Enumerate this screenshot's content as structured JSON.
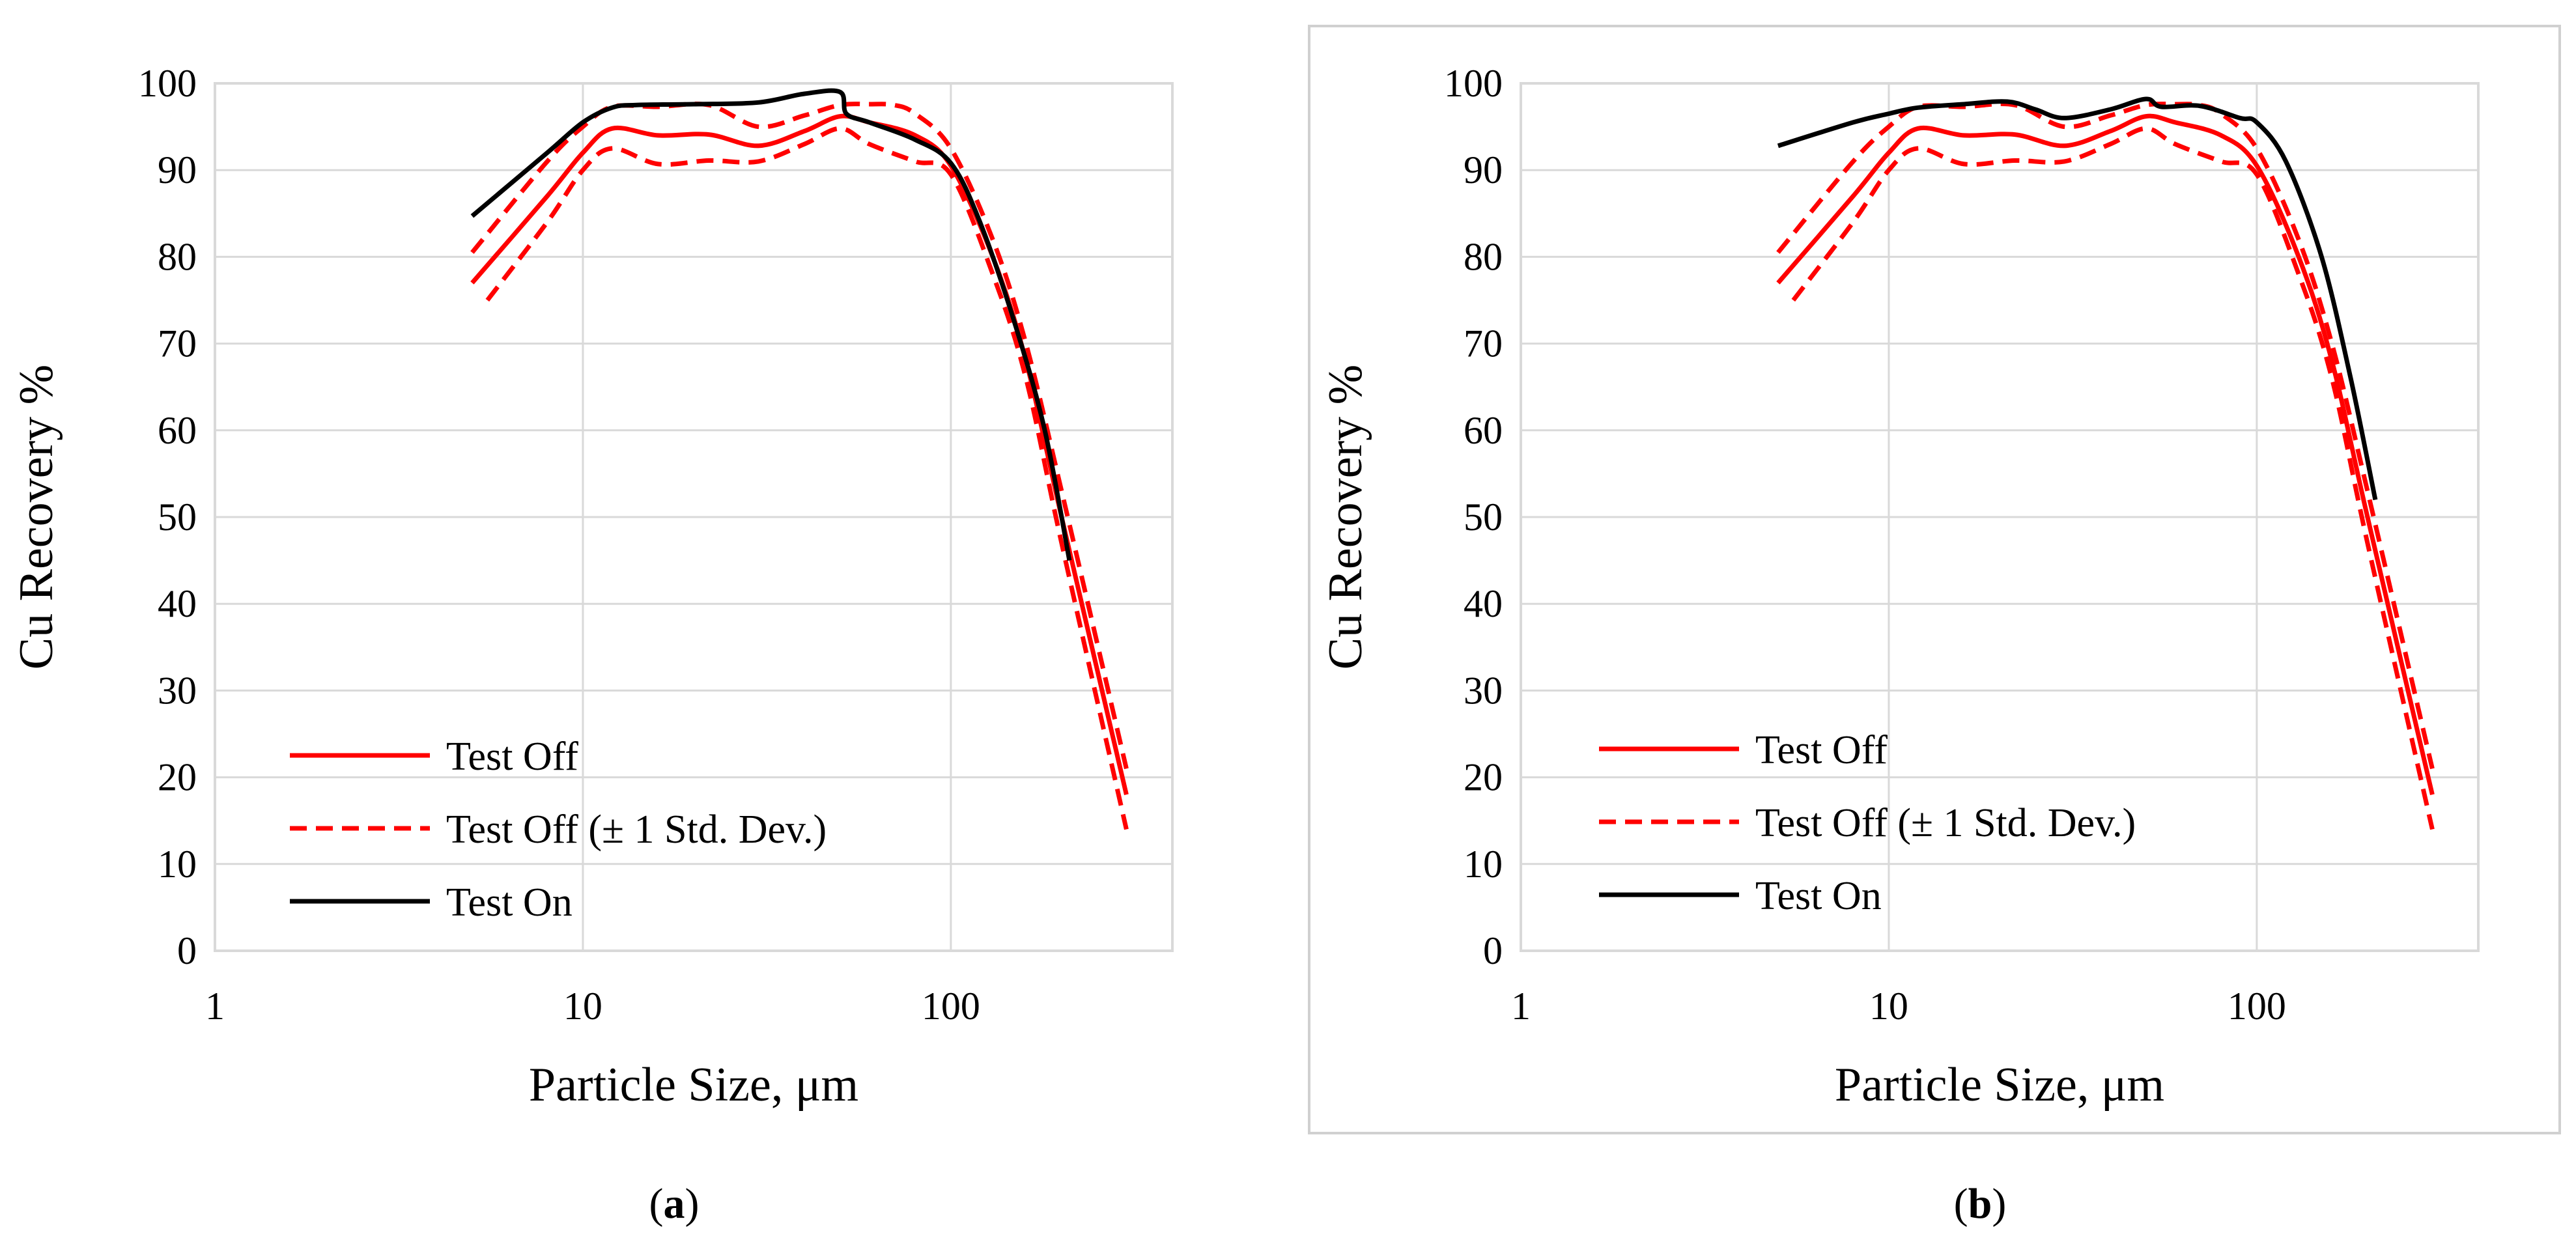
{
  "chart_data": [
    {
      "panel_label": "a",
      "type": "line",
      "xlabel": "Particle Size, μm",
      "ylabel": "Cu Recovery %",
      "x_scale": "log",
      "xlim": [
        1,
        400
      ],
      "ylim": [
        0,
        100
      ],
      "x_ticks": [
        1,
        10,
        100
      ],
      "y_ticks": [
        0,
        10,
        20,
        30,
        40,
        50,
        60,
        70,
        80,
        90,
        100
      ],
      "grid": true,
      "legend_position": "bottom-left",
      "legend": [
        "Test Off",
        "Test Off (± 1 Std. Dev.)",
        "Test On"
      ],
      "series": [
        {
          "name": "Test Off",
          "color": "#ff0000",
          "style": "solid",
          "legend_index": 0,
          "x": [
            5,
            8,
            10,
            12,
            16,
            22,
            30,
            40,
            50,
            60,
            80,
            100,
            130,
            160,
            200,
            300
          ],
          "y": [
            77,
            87,
            92,
            94.8,
            94,
            94.1,
            92.8,
            94.5,
            96.2,
            95.5,
            94,
            90.5,
            80,
            68,
            50,
            18
          ]
        },
        {
          "name": "Test Off +1 Std. Dev.",
          "color": "#ff0000",
          "style": "dashed",
          "legend_index": 1,
          "x": [
            5,
            8,
            10,
            12,
            16,
            22,
            30,
            40,
            50,
            60,
            70,
            80,
            100,
            130,
            160,
            200,
            300
          ],
          "y": [
            80.5,
            91,
            95,
            97.3,
            97.3,
            97.5,
            95,
            96.3,
            97.5,
            97.6,
            97.5,
            96.5,
            92.5,
            82,
            70,
            53,
            21
          ]
        },
        {
          "name": "Test Off -1 Std. Dev.",
          "color": "#ff0000",
          "style": "dashed",
          "legend_index": 1,
          "x": [
            5.5,
            8,
            10,
            12,
            16,
            22,
            30,
            40,
            50,
            60,
            80,
            100,
            130,
            160,
            200,
            300
          ],
          "y": [
            75,
            84,
            90,
            92.5,
            90.7,
            91.1,
            91,
            93,
            94.8,
            93,
            91,
            89.5,
            78,
            66,
            47,
            14
          ]
        },
        {
          "name": "Test On",
          "color": "#000000",
          "style": "solid",
          "legend_index": 2,
          "x": [
            5,
            8,
            10,
            12,
            14,
            20,
            30,
            40,
            50,
            52,
            60,
            80,
            100,
            120,
            150,
            180,
            210
          ],
          "y": [
            84.7,
            92,
            95.5,
            97.2,
            97.5,
            97.6,
            97.8,
            98.8,
            99,
            96.5,
            95.5,
            93.5,
            90.8,
            84,
            72,
            60,
            45
          ]
        }
      ]
    },
    {
      "panel_label": "b",
      "type": "line",
      "xlabel": "Particle Size, μm",
      "ylabel": "Cu Recovery %",
      "x_scale": "log",
      "xlim": [
        1,
        400
      ],
      "ylim": [
        0,
        100
      ],
      "x_ticks": [
        1,
        10,
        100
      ],
      "y_ticks": [
        0,
        10,
        20,
        30,
        40,
        50,
        60,
        70,
        80,
        90,
        100
      ],
      "grid": true,
      "legend_position": "bottom-left",
      "legend": [
        "Test Off",
        "Test Off (± 1 Std. Dev.)",
        "Test On"
      ],
      "series": [
        {
          "name": "Test Off",
          "color": "#ff0000",
          "style": "solid",
          "legend_index": 0,
          "x": [
            5,
            8,
            10,
            12,
            16,
            22,
            30,
            40,
            50,
            60,
            80,
            100,
            130,
            160,
            200,
            300
          ],
          "y": [
            77,
            87,
            92,
            94.8,
            94,
            94.1,
            92.8,
            94.5,
            96.2,
            95.5,
            94,
            90.5,
            80,
            68,
            50,
            18
          ]
        },
        {
          "name": "Test Off +1 Std. Dev.",
          "color": "#ff0000",
          "style": "dashed",
          "legend_index": 1,
          "x": [
            5,
            8,
            10,
            12,
            16,
            22,
            30,
            40,
            50,
            60,
            70,
            80,
            100,
            130,
            160,
            200,
            300
          ],
          "y": [
            80.5,
            91,
            95,
            97.3,
            97.3,
            97.5,
            95,
            96.3,
            97.5,
            97.6,
            97.5,
            96.5,
            92.5,
            82,
            70,
            53,
            21
          ]
        },
        {
          "name": "Test Off -1 Std. Dev.",
          "color": "#ff0000",
          "style": "dashed",
          "legend_index": 1,
          "x": [
            5.5,
            8,
            10,
            12,
            16,
            22,
            30,
            40,
            50,
            60,
            80,
            100,
            130,
            160,
            200,
            300
          ],
          "y": [
            75,
            84,
            90,
            92.5,
            90.7,
            91.1,
            91,
            93,
            94.8,
            93,
            91,
            89.5,
            78,
            66,
            47,
            14
          ]
        },
        {
          "name": "Test On",
          "color": "#000000",
          "style": "solid",
          "legend_index": 2,
          "x": [
            5,
            8,
            10,
            12,
            16,
            21,
            25,
            30,
            40,
            50,
            55,
            70,
            90,
            100,
            120,
            150,
            180,
            210
          ],
          "y": [
            92.8,
            95.5,
            96.5,
            97.2,
            97.6,
            97.9,
            97,
            96,
            97,
            98.2,
            97.3,
            97.4,
            96,
            95.5,
            91,
            80,
            66,
            52
          ]
        }
      ]
    }
  ]
}
